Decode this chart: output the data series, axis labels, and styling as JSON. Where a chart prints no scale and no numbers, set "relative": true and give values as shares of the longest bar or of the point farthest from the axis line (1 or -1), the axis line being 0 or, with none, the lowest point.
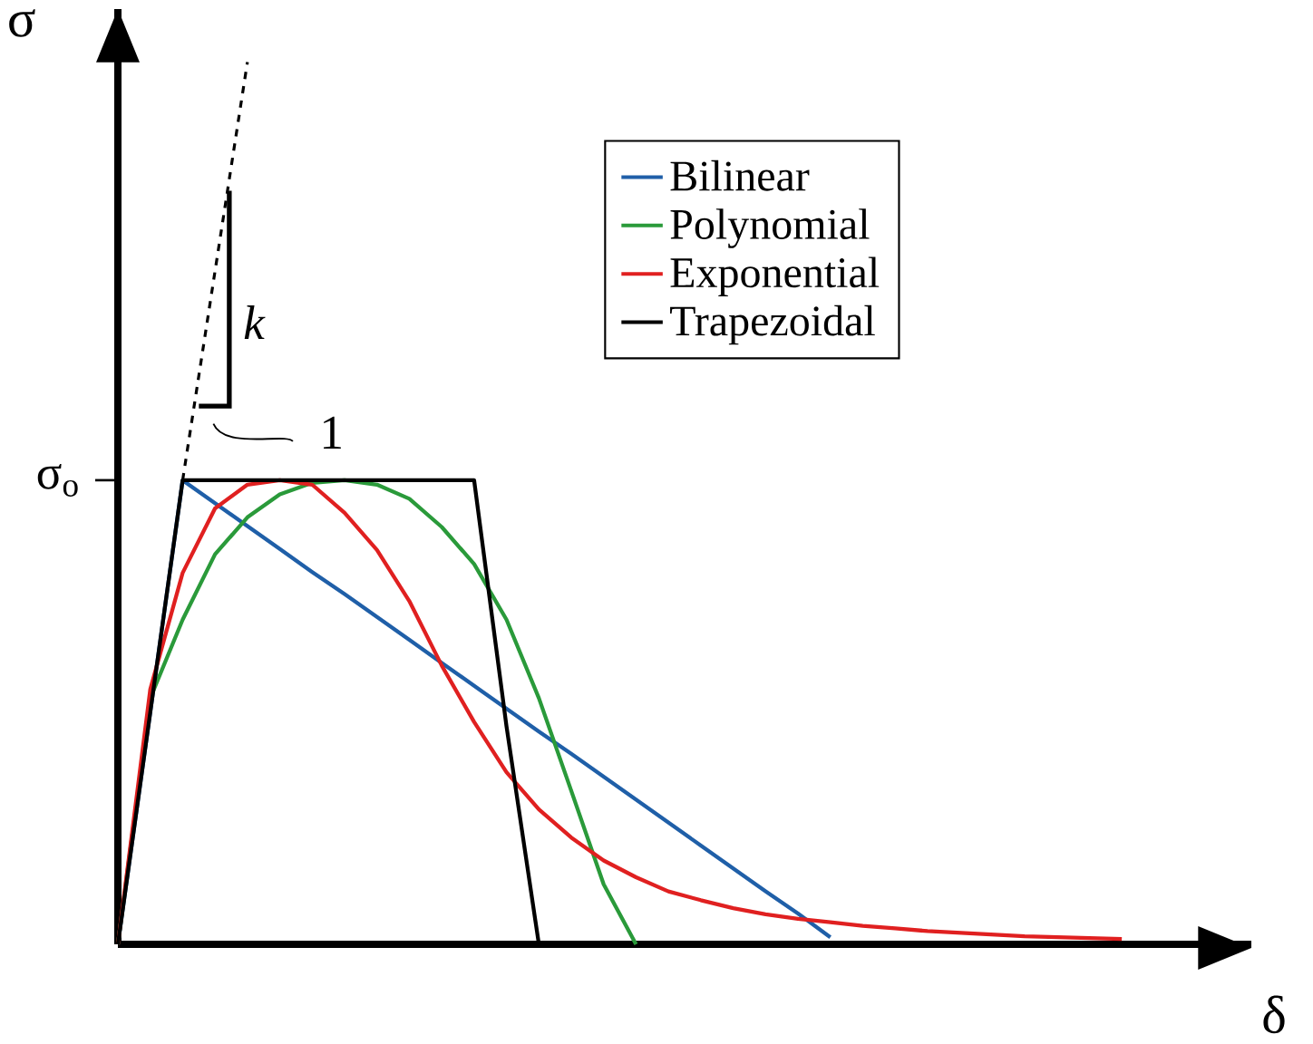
{
  "chart_data": {
    "type": "line",
    "relative": true,
    "xlabel": "δ",
    "ylabel": "σ",
    "legend": "top right",
    "categories": [
      null,
      null,
      null,
      null,
      null,
      null,
      null,
      null,
      null,
      null,
      null,
      null,
      null,
      null,
      null,
      null,
      null,
      null,
      null,
      null,
      null,
      null,
      null,
      null,
      null,
      null,
      null,
      null,
      null,
      null,
      null,
      null
    ],
    "series": [
      {
        "name": "Bilinear",
        "color": "#1f5fa8",
        "values": [
          0,
          0.263,
          0.526,
          0.5,
          0.474,
          0.448,
          0.422,
          0.397,
          0.371,
          0.345,
          0.319,
          0.293,
          0.267,
          0.241,
          0.216,
          0.19,
          0.164,
          0.138,
          0.112,
          0.086,
          0.06,
          0.035,
          0.008,
          null,
          null,
          null,
          null,
          null,
          null,
          null,
          null,
          null
        ]
      },
      {
        "name": "Polynomial",
        "color": "#2a9a3a",
        "values": [
          0,
          0.279,
          0.368,
          0.442,
          0.484,
          0.51,
          0.523,
          0.526,
          0.521,
          0.505,
          0.473,
          0.431,
          0.368,
          0.279,
          0.174,
          0.068,
          0,
          null,
          null,
          null,
          null,
          null,
          null,
          null,
          null,
          null,
          null,
          null,
          null,
          null,
          null,
          null
        ]
      },
      {
        "name": "Exponential",
        "color": "#e02020",
        "values": [
          0,
          0.289,
          0.421,
          0.494,
          0.521,
          0.526,
          0.521,
          0.489,
          0.447,
          0.389,
          0.316,
          0.252,
          0.195,
          0.153,
          0.121,
          0.095,
          0.076,
          0.06,
          0.05,
          0.041,
          0.034,
          0.029,
          0.025,
          0.021,
          0.018,
          0.015,
          0.013,
          0.011,
          0.009,
          0.008,
          0.007,
          0.006
        ]
      },
      {
        "name": "Trapezoidal",
        "color": "#000000",
        "values": [
          0,
          0.263,
          0.526,
          0.526,
          0.526,
          0.526,
          0.526,
          0.526,
          0.526,
          0.526,
          0.526,
          0.526,
          0.247,
          0,
          null,
          null,
          null,
          null,
          null,
          null,
          null,
          null,
          null,
          null,
          null,
          null,
          null,
          null,
          null,
          null,
          null,
          null
        ]
      },
      {
        "type": "line",
        "line_style": "dashed",
        "color": "#000000",
        "values": [
          null,
          null,
          0.526,
          0.763,
          1.0,
          null,
          null,
          null,
          null,
          null,
          null,
          null,
          null,
          null,
          null,
          null,
          null,
          null,
          null,
          null,
          null,
          null,
          null,
          null,
          null,
          null,
          null,
          null,
          null,
          null,
          null,
          null
        ]
      }
    ],
    "annotations": [
      "k",
      "1",
      "σ$_{o}$"
    ]
  }
}
